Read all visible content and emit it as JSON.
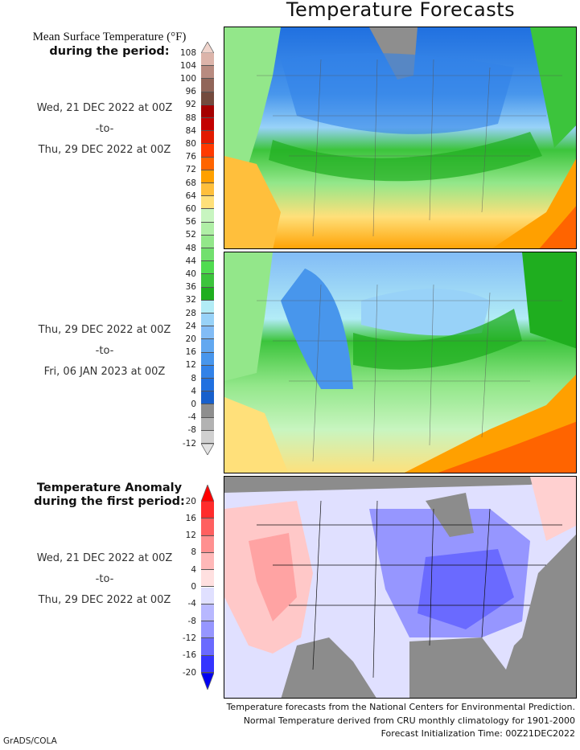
{
  "title": "Temperature Forecasts",
  "mean_legend": {
    "heading_line1": "Mean Surface Temperature (°F)",
    "heading_line2": "during the period:",
    "labels": [
      "108",
      "104",
      "100",
      "96",
      "92",
      "88",
      "84",
      "80",
      "76",
      "72",
      "68",
      "64",
      "60",
      "56",
      "52",
      "48",
      "44",
      "40",
      "36",
      "32",
      "28",
      "24",
      "20",
      "16",
      "12",
      "8",
      "4",
      "0",
      "-4",
      "-8",
      "-12"
    ],
    "colors": [
      "#dcb4aa",
      "#b88b80",
      "#916559",
      "#744a3d",
      "#a50000",
      "#c30000",
      "#e21a00",
      "#ff3a00",
      "#ff6400",
      "#ffa000",
      "#ffbf3c",
      "#ffe07a",
      "#c8f5c0",
      "#b0efa6",
      "#93e78a",
      "#72e06e",
      "#50dc50",
      "#3cc43c",
      "#1fae1f",
      "#b2ecf6",
      "#98d2f8",
      "#82bcf6",
      "#62a8f0",
      "#4896ec",
      "#3282e8",
      "#2070e0",
      "#1860cc",
      "#8e8e8e",
      "#b2b2b2",
      "#d0d0d0"
    ],
    "arrow_top": "#f0d4cc",
    "arrow_bottom": "#e2e2e2"
  },
  "periods": [
    {
      "start": "Wed, 21 DEC 2022 at 00Z",
      "sep": "-to-",
      "end": "Thu, 29 DEC 2022 at 00Z"
    },
    {
      "start": "Thu, 29 DEC 2022 at 00Z",
      "sep": "-to-",
      "end": "Fri, 06 JAN 2023 at 00Z"
    }
  ],
  "anomaly_legend": {
    "heading_line1": "Temperature Anomaly",
    "heading_line2": "during the first period:",
    "labels": [
      "20",
      "16",
      "12",
      "8",
      "4",
      "0",
      "-4",
      "-8",
      "-12",
      "-16",
      "-20"
    ],
    "colors": [
      "#ff2c2c",
      "#ff6060",
      "#ff9090",
      "#ffb8b8",
      "#ffe0e0",
      "#e0e0ff",
      "#b8b8ff",
      "#9696ff",
      "#6a6aff",
      "#3434ff"
    ],
    "arrow_top": "#ff0000",
    "arrow_bottom": "#0000f0",
    "period": {
      "start": "Wed, 21 DEC 2022 at 00Z",
      "sep": "-to-",
      "end": "Thu, 29 DEC 2022 at 00Z"
    }
  },
  "footer": {
    "line1": "Temperature forecasts from the National Centers for Environmental Prediction.",
    "line2": "Normal Temperature derived from CRU monthly climatology for 1901-2000",
    "line3": "Forecast Initialization Time: 00Z21DEC2022",
    "credit": "GrADS/COLA"
  }
}
